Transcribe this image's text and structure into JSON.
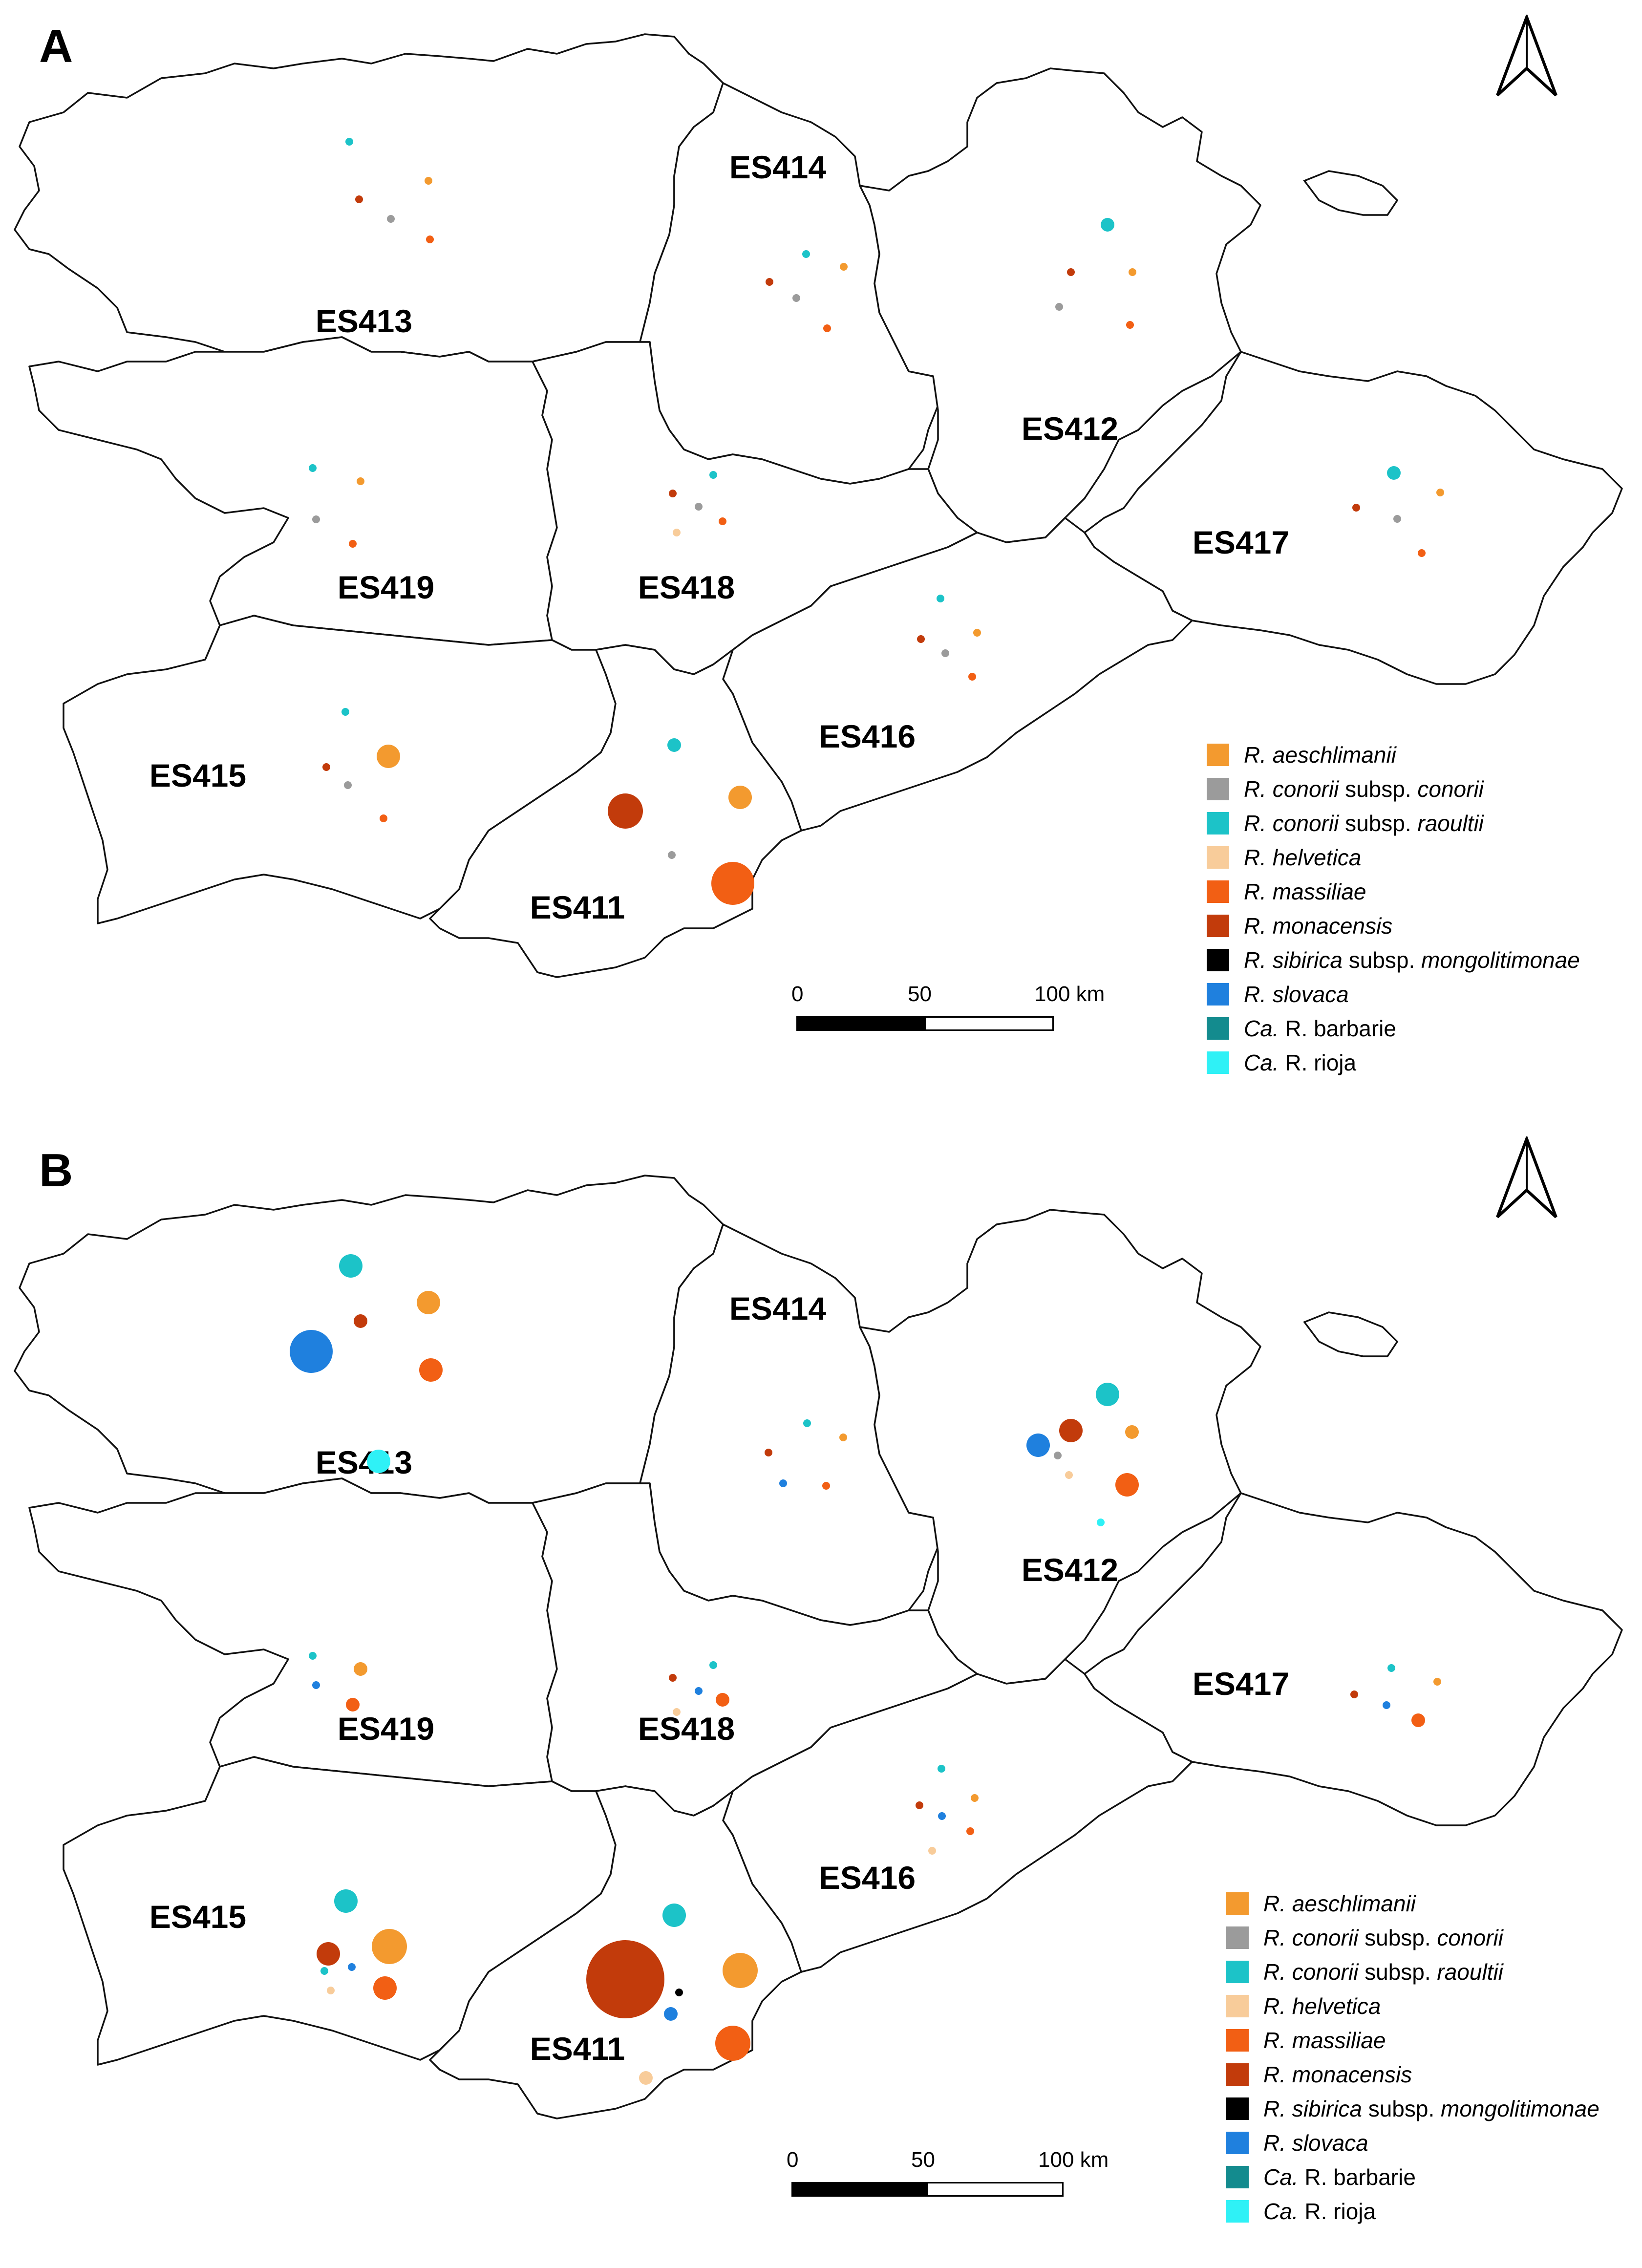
{
  "panels": [
    {
      "label": "A",
      "regions": [
        "ES413",
        "ES414",
        "ES412",
        "ES419",
        "ES418",
        "ES417",
        "ES416",
        "ES415",
        "ES411"
      ],
      "points": [
        {
          "region": "ES413",
          "species": "R. conorii subsp. raoultii",
          "size": "xs"
        },
        {
          "region": "ES413",
          "species": "R. aeschlimanii",
          "size": "xs"
        },
        {
          "region": "ES413",
          "species": "R. monacensis",
          "size": "xs"
        },
        {
          "region": "ES413",
          "species": "R. conorii subsp. conorii",
          "size": "xs"
        },
        {
          "region": "ES413",
          "species": "R. massiliae",
          "size": "xs"
        },
        {
          "region": "ES414",
          "species": "R. conorii subsp. raoultii",
          "size": "xs"
        },
        {
          "region": "ES414",
          "species": "R. aeschlimanii",
          "size": "xs"
        },
        {
          "region": "ES414",
          "species": "R. monacensis",
          "size": "xs"
        },
        {
          "region": "ES414",
          "species": "R. conorii subsp. conorii",
          "size": "xs"
        },
        {
          "region": "ES414",
          "species": "R. massiliae",
          "size": "xs"
        },
        {
          "region": "ES412",
          "species": "R. conorii subsp. raoultii",
          "size": "s"
        },
        {
          "region": "ES412",
          "species": "R. monacensis",
          "size": "xs"
        },
        {
          "region": "ES412",
          "species": "R. aeschlimanii",
          "size": "xs"
        },
        {
          "region": "ES412",
          "species": "R. conorii subsp. conorii",
          "size": "xs"
        },
        {
          "region": "ES412",
          "species": "R. massiliae",
          "size": "xs"
        },
        {
          "region": "ES419",
          "species": "R. conorii subsp. raoultii",
          "size": "xs"
        },
        {
          "region": "ES419",
          "species": "R. aeschlimanii",
          "size": "xs"
        },
        {
          "region": "ES419",
          "species": "R. conorii subsp. conorii",
          "size": "xs"
        },
        {
          "region": "ES419",
          "species": "R. massiliae",
          "size": "xs"
        },
        {
          "region": "ES418",
          "species": "R. conorii subsp. raoultii",
          "size": "xs"
        },
        {
          "region": "ES418",
          "species": "R. monacensis",
          "size": "xs"
        },
        {
          "region": "ES418",
          "species": "R. conorii subsp. conorii",
          "size": "xs"
        },
        {
          "region": "ES418",
          "species": "R. massiliae",
          "size": "xs"
        },
        {
          "region": "ES418",
          "species": "R. helvetica",
          "size": "xs"
        },
        {
          "region": "ES417",
          "species": "R. conorii subsp. raoultii",
          "size": "s"
        },
        {
          "region": "ES417",
          "species": "R. aeschlimanii",
          "size": "xs"
        },
        {
          "region": "ES417",
          "species": "R. monacensis",
          "size": "xs"
        },
        {
          "region": "ES417",
          "species": "R. conorii subsp. conorii",
          "size": "xs"
        },
        {
          "region": "ES417",
          "species": "R. massiliae",
          "size": "xs"
        },
        {
          "region": "ES416",
          "species": "R. conorii subsp. raoultii",
          "size": "xs"
        },
        {
          "region": "ES416",
          "species": "R. aeschlimanii",
          "size": "xs"
        },
        {
          "region": "ES416",
          "species": "R. monacensis",
          "size": "xs"
        },
        {
          "region": "ES416",
          "species": "R. conorii subsp. conorii",
          "size": "xs"
        },
        {
          "region": "ES416",
          "species": "R. massiliae",
          "size": "xs"
        },
        {
          "region": "ES415",
          "species": "R. conorii subsp. raoultii",
          "size": "xs"
        },
        {
          "region": "ES415",
          "species": "R. aeschlimanii",
          "size": "m"
        },
        {
          "region": "ES415",
          "species": "R. monacensis",
          "size": "xs"
        },
        {
          "region": "ES415",
          "species": "R. conorii subsp. conorii",
          "size": "xs"
        },
        {
          "region": "ES415",
          "species": "R. massiliae",
          "size": "xs"
        },
        {
          "region": "ES411",
          "species": "R. conorii subsp. raoultii",
          "size": "s"
        },
        {
          "region": "ES411",
          "species": "R. monacensis",
          "size": "l"
        },
        {
          "region": "ES411",
          "species": "R. aeschlimanii",
          "size": "m"
        },
        {
          "region": "ES411",
          "species": "R. conorii subsp. conorii",
          "size": "xs"
        },
        {
          "region": "ES411",
          "species": "R. massiliae",
          "size": "xl"
        }
      ]
    },
    {
      "label": "B",
      "regions": [
        "ES413",
        "ES414",
        "ES412",
        "ES419",
        "ES418",
        "ES417",
        "ES416",
        "ES415",
        "ES411"
      ],
      "points": [
        {
          "region": "ES413",
          "species": "R. conorii subsp. raoultii",
          "size": "m"
        },
        {
          "region": "ES413",
          "species": "R. aeschlimanii",
          "size": "m"
        },
        {
          "region": "ES413",
          "species": "R. monacensis",
          "size": "s"
        },
        {
          "region": "ES413",
          "species": "R. slovaca",
          "size": "xl"
        },
        {
          "region": "ES413",
          "species": "R. massiliae",
          "size": "m"
        },
        {
          "region": "ES413",
          "species": "Ca. R. rioja",
          "size": "m"
        },
        {
          "region": "ES414",
          "species": "R. conorii subsp. raoultii",
          "size": "xs"
        },
        {
          "region": "ES414",
          "species": "R. aeschlimanii",
          "size": "xs"
        },
        {
          "region": "ES414",
          "species": "R. monacensis",
          "size": "xs"
        },
        {
          "region": "ES414",
          "species": "R. slovaca",
          "size": "xs"
        },
        {
          "region": "ES414",
          "species": "R. massiliae",
          "size": "xs"
        },
        {
          "region": "ES412",
          "species": "R. conorii subsp. raoultii",
          "size": "m"
        },
        {
          "region": "ES412",
          "species": "R. monacensis",
          "size": "m"
        },
        {
          "region": "ES412",
          "species": "R. slovaca",
          "size": "m"
        },
        {
          "region": "ES412",
          "species": "R. aeschlimanii",
          "size": "s"
        },
        {
          "region": "ES412",
          "species": "R. conorii subsp. conorii",
          "size": "xs"
        },
        {
          "region": "ES412",
          "species": "R. helvetica",
          "size": "xs"
        },
        {
          "region": "ES412",
          "species": "R. massiliae",
          "size": "m"
        },
        {
          "region": "ES412",
          "species": "Ca. R. rioja",
          "size": "xs"
        },
        {
          "region": "ES419",
          "species": "R. conorii subsp. raoultii",
          "size": "xs"
        },
        {
          "region": "ES419",
          "species": "R. aeschlimanii",
          "size": "s"
        },
        {
          "region": "ES419",
          "species": "R. slovaca",
          "size": "xs"
        },
        {
          "region": "ES419",
          "species": "R. massiliae",
          "size": "s"
        },
        {
          "region": "ES418",
          "species": "R. conorii subsp. raoultii",
          "size": "xs"
        },
        {
          "region": "ES418",
          "species": "R. monacensis",
          "size": "xs"
        },
        {
          "region": "ES418",
          "species": "R. slovaca",
          "size": "xs"
        },
        {
          "region": "ES418",
          "species": "R. massiliae",
          "size": "s"
        },
        {
          "region": "ES418",
          "species": "R. helvetica",
          "size": "xs"
        },
        {
          "region": "ES417",
          "species": "R. conorii subsp. raoultii",
          "size": "xs"
        },
        {
          "region": "ES417",
          "species": "R. aeschlimanii",
          "size": "xs"
        },
        {
          "region": "ES417",
          "species": "R. monacensis",
          "size": "xs"
        },
        {
          "region": "ES417",
          "species": "R. slovaca",
          "size": "xs"
        },
        {
          "region": "ES417",
          "species": "R. massiliae",
          "size": "s"
        },
        {
          "region": "ES416",
          "species": "R. conorii subsp. raoultii",
          "size": "xs"
        },
        {
          "region": "ES416",
          "species": "R. aeschlimanii",
          "size": "xs"
        },
        {
          "region": "ES416",
          "species": "R. monacensis",
          "size": "xs"
        },
        {
          "region": "ES416",
          "species": "R. slovaca",
          "size": "xs"
        },
        {
          "region": "ES416",
          "species": "R. massiliae",
          "size": "xs"
        },
        {
          "region": "ES416",
          "species": "R. helvetica",
          "size": "xs"
        },
        {
          "region": "ES415",
          "species": "R. conorii subsp. raoultii",
          "size": "m"
        },
        {
          "region": "ES415",
          "species": "R. aeschlimanii",
          "size": "l"
        },
        {
          "region": "ES415",
          "species": "R. monacensis",
          "size": "m"
        },
        {
          "region": "ES415",
          "species": "R. slovaca",
          "size": "xs"
        },
        {
          "region": "ES415",
          "species": "R. conorii subsp. raoultii",
          "size": "xs"
        },
        {
          "region": "ES415",
          "species": "R. helvetica",
          "size": "xs"
        },
        {
          "region": "ES415",
          "species": "R. massiliae",
          "size": "m"
        },
        {
          "region": "ES411",
          "species": "R. conorii subsp. raoultii",
          "size": "m"
        },
        {
          "region": "ES411",
          "species": "R. monacensis",
          "size": "xxl"
        },
        {
          "region": "ES411",
          "species": "R. sibirica subsp. mongolitimonae",
          "size": "xs"
        },
        {
          "region": "ES411",
          "species": "R. aeschlimanii",
          "size": "l"
        },
        {
          "region": "ES411",
          "species": "R. slovaca",
          "size": "s"
        },
        {
          "region": "ES411",
          "species": "R. massiliae",
          "size": "l"
        },
        {
          "region": "ES411",
          "species": "R. helvetica",
          "size": "s"
        }
      ]
    }
  ],
  "legend": [
    {
      "italic_part": "R. aeschlimanii",
      "plain_part": "",
      "italic_after": "",
      "color": "#f39a2f"
    },
    {
      "italic_part": "R. conorii",
      "plain_part": " subsp. ",
      "italic_after": "conorii",
      "color": "#9b9b9b"
    },
    {
      "italic_part": "R. conorii",
      "plain_part": " subsp. ",
      "italic_after": "raoultii",
      "color": "#1cc3c8"
    },
    {
      "italic_part": "R. helvetica",
      "plain_part": "",
      "italic_after": "",
      "color": "#f8cc9a"
    },
    {
      "italic_part": "R. massiliae",
      "plain_part": "",
      "italic_after": "",
      "color": "#f25f14"
    },
    {
      "italic_part": "R. monacensis",
      "plain_part": "",
      "italic_after": "",
      "color": "#c23b0b"
    },
    {
      "italic_part": "R. sibirica",
      "plain_part": " subsp. ",
      "italic_after": "mongolitimonae",
      "color": "#000000"
    },
    {
      "italic_part": "R. slovaca",
      "plain_part": "",
      "italic_after": "",
      "color": "#1f80de"
    },
    {
      "italic_part": "Ca.",
      "plain_part": " R. barbarie",
      "italic_after": "",
      "color": "#138b8e"
    },
    {
      "italic_part": "Ca.",
      "plain_part": " R. rioja",
      "italic_after": "",
      "color": "#2ff1f6"
    }
  ],
  "scalebar": {
    "ticks": [
      "0",
      "50",
      "100 km"
    ]
  },
  "colors": {
    "R. aeschlimanii": "#f39a2f",
    "R. conorii subsp. conorii": "#9b9b9b",
    "R. conorii subsp. raoultii": "#1cc3c8",
    "R. helvetica": "#f8cc9a",
    "R. massiliae": "#f25f14",
    "R. monacensis": "#c23b0b",
    "R. sibirica subsp. mongolitimonae": "#000000",
    "R. slovaca": "#1f80de",
    "Ca. R. barbarie": "#138b8e",
    "Ca. R. rioja": "#2ff1f6"
  },
  "icons": {
    "north": "north-arrow-icon"
  }
}
